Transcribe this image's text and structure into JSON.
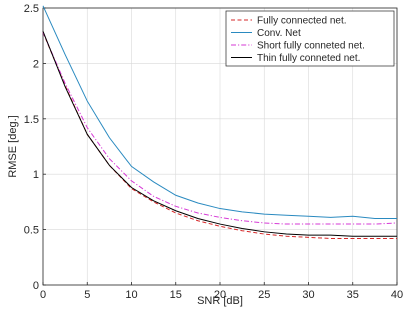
{
  "chart_data": {
    "type": "line",
    "xlabel": "SNR [dB]",
    "ylabel": "RMSE [deg.]",
    "xlim": [
      0,
      40
    ],
    "ylim": [
      0,
      2.5
    ],
    "xticks": [
      0,
      5,
      10,
      15,
      20,
      25,
      30,
      35,
      40
    ],
    "yticks": [
      0,
      0.5,
      1,
      1.5,
      2,
      2.5
    ],
    "xtick_labels": [
      "0",
      "5",
      "10",
      "15",
      "20",
      "25",
      "30",
      "35",
      "40"
    ],
    "ytick_labels": [
      "0",
      "0.5",
      "1",
      "1.5",
      "2",
      "2.5"
    ],
    "grid": true,
    "legend_position": "top-right",
    "x": [
      0,
      2.5,
      5,
      7.5,
      10,
      12.5,
      15,
      17.5,
      20,
      22.5,
      25,
      27.5,
      30,
      32.5,
      35,
      37.5,
      40
    ],
    "series": [
      {
        "name": "Fully connected net.",
        "color": "#d62728",
        "dash": "dashed",
        "values": [
          2.28,
          1.8,
          1.36,
          1.08,
          0.87,
          0.75,
          0.65,
          0.58,
          0.53,
          0.49,
          0.46,
          0.44,
          0.43,
          0.42,
          0.42,
          0.42,
          0.42
        ]
      },
      {
        "name": "Conv. Net",
        "color": "#2a8ac0",
        "dash": "solid",
        "values": [
          2.52,
          2.08,
          1.66,
          1.33,
          1.07,
          0.93,
          0.81,
          0.74,
          0.69,
          0.66,
          0.64,
          0.63,
          0.62,
          0.61,
          0.62,
          0.6,
          0.6
        ]
      },
      {
        "name": "Short fully conneted net.",
        "color": "#d63ad6",
        "dash": "dashdot",
        "values": [
          2.28,
          1.82,
          1.42,
          1.14,
          0.94,
          0.8,
          0.71,
          0.65,
          0.61,
          0.58,
          0.56,
          0.55,
          0.55,
          0.55,
          0.55,
          0.55,
          0.56
        ]
      },
      {
        "name": "Thin fully conneted net.",
        "color": "#000000",
        "dash": "solid",
        "values": [
          2.29,
          1.79,
          1.36,
          1.08,
          0.88,
          0.76,
          0.67,
          0.6,
          0.55,
          0.51,
          0.48,
          0.46,
          0.45,
          0.45,
          0.44,
          0.44,
          0.44
        ]
      }
    ]
  }
}
